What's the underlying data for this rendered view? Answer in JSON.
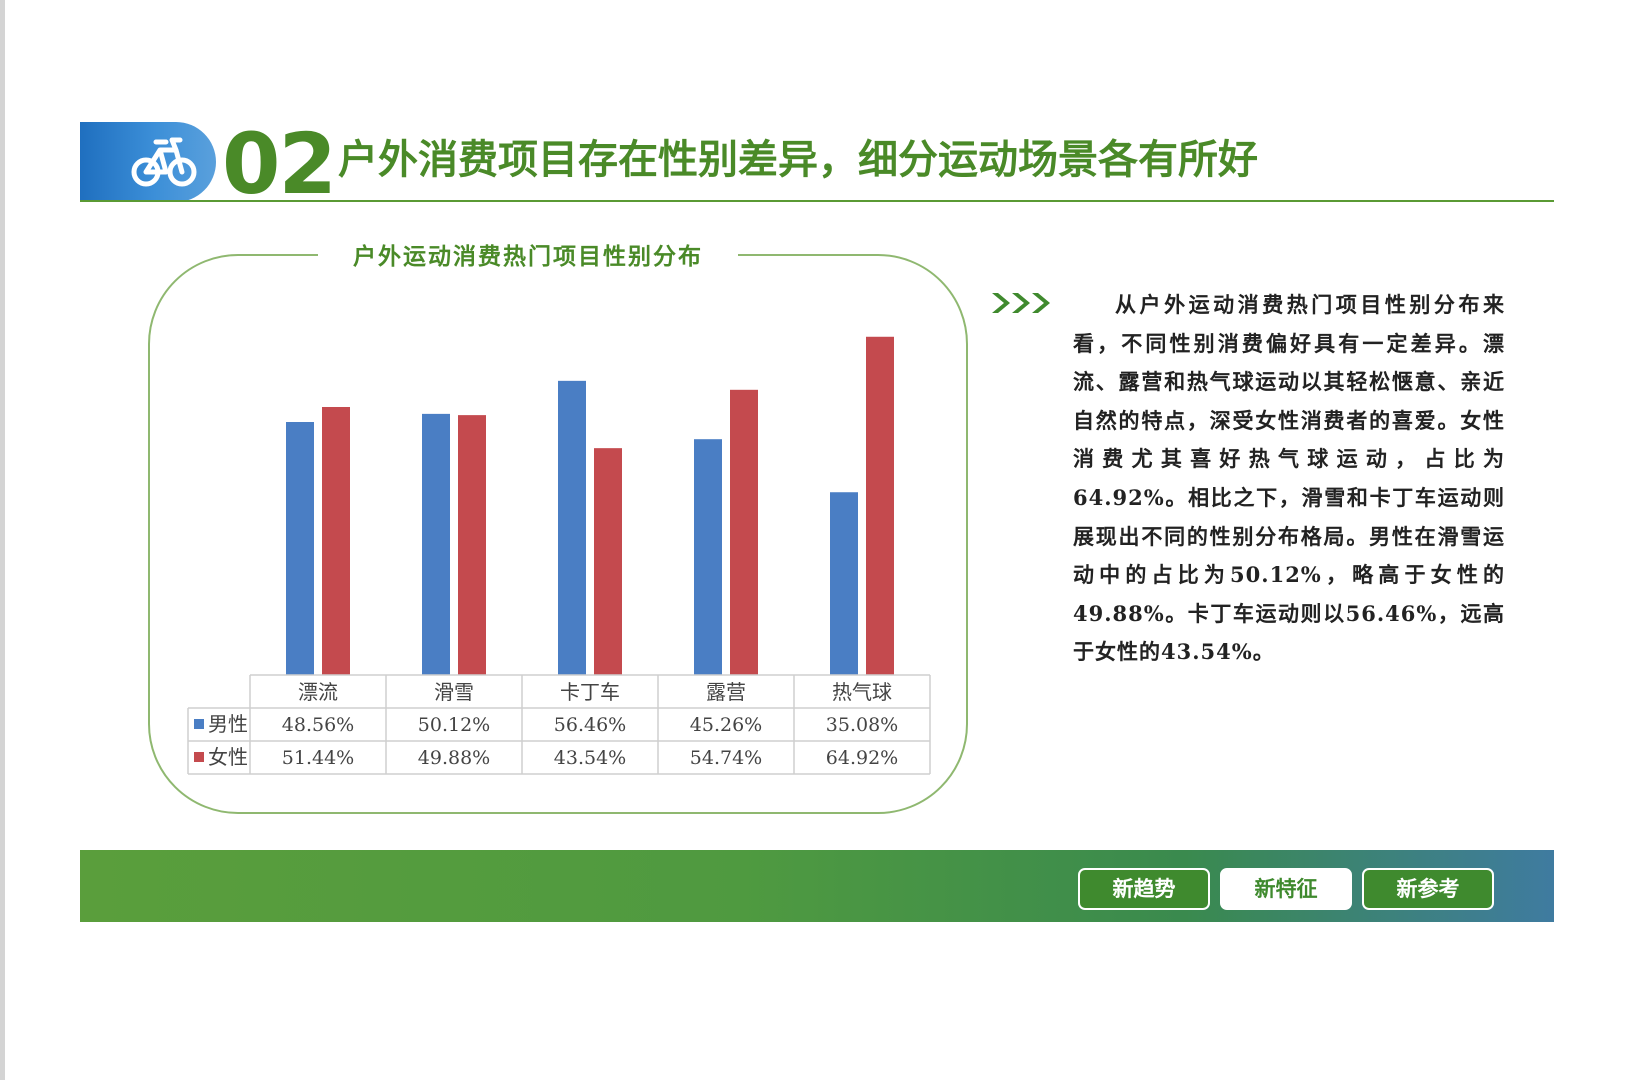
{
  "header": {
    "number": "02",
    "title": "户外消费项目存在性别差异，细分运动场景各有所好",
    "icon": "bicycle-icon"
  },
  "colors": {
    "brand_green": "#4a8a28",
    "male": "#4a7ec4",
    "female": "#c44a4e",
    "header_blue": "#2f80cc"
  },
  "chart_data": {
    "type": "bar",
    "title": "户外运动消费热门项目性别分布",
    "categories": [
      "漂流",
      "滑雪",
      "卡丁车",
      "露营",
      "热气球"
    ],
    "series": [
      {
        "name": "男性",
        "values": [
          48.56,
          50.12,
          56.46,
          45.26,
          35.08
        ],
        "labels": [
          "48.56%",
          "50.12%",
          "56.46%",
          "45.26%",
          "35.08%"
        ],
        "color": "#4a7ec4"
      },
      {
        "name": "女性",
        "values": [
          51.44,
          49.88,
          43.54,
          54.74,
          64.92
        ],
        "labels": [
          "51.44%",
          "49.88%",
          "43.54%",
          "54.74%",
          "64.92%"
        ],
        "color": "#c44a4e"
      }
    ],
    "ylim": [
      0,
      70
    ],
    "grid": false,
    "legend": "data-table"
  },
  "description": "从户外运动消费热门项目性别分布来看，不同性别消费偏好具有一定差异。漂流、露营和热气球运动以其轻松惬意、亲近自然的特点，深受女性消费者的喜爱。女性消费尤其喜好热气球运动，占比为64.92%。相比之下，滑雪和卡丁车运动则展现出不同的性别分布格局。男性在滑雪运动中的占比为50.12%，略高于女性的49.88%。卡丁车运动则以56.46%，远高于女性的43.54%。",
  "footer": {
    "buttons": [
      {
        "label": "新趋势",
        "active": false
      },
      {
        "label": "新特征",
        "active": true
      },
      {
        "label": "新参考",
        "active": false
      }
    ]
  }
}
